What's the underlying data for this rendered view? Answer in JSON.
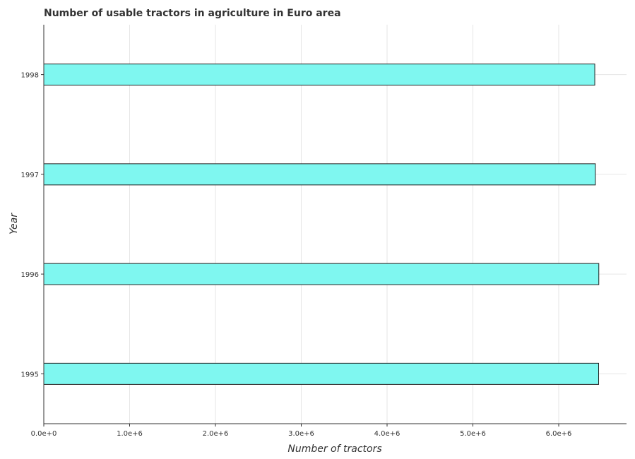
{
  "chart_data": {
    "type": "bar",
    "orientation": "horizontal",
    "title": "Number of usable tractors in agriculture in Euro area",
    "xlabel": "Number of tractors",
    "ylabel": "Year",
    "categories": [
      "1995",
      "1996",
      "1997",
      "1998"
    ],
    "values": [
      6465000,
      6467000,
      6427000,
      6420000
    ],
    "xlim": [
      0,
      6790000
    ],
    "xticks": [
      0,
      1000000,
      2000000,
      3000000,
      4000000,
      5000000,
      6000000
    ],
    "xtick_labels": [
      "0.0e+0",
      "1.0e+6",
      "2.0e+6",
      "3.0e+6",
      "4.0e+6",
      "5.0e+6",
      "6.0e+6"
    ],
    "grid": true,
    "bar_color": "#7ff7f0",
    "legend": "none"
  }
}
